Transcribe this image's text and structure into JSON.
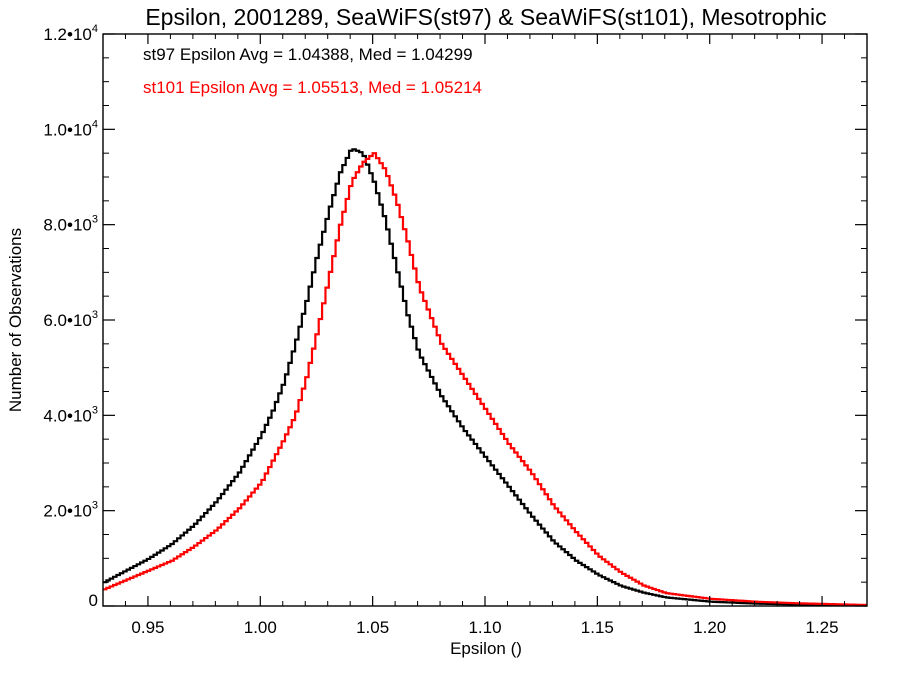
{
  "chart_data": {
    "type": "line",
    "style": "step-histogram",
    "title": "Epsilon, 2001289, SeaWiFS(st97) & SeaWiFS(st101), Mesotrophic",
    "xlabel": "Epsilon ()",
    "ylabel": "Number of Observations",
    "xlim": [
      0.93,
      1.27
    ],
    "ylim": [
      0,
      12000
    ],
    "x_ticks": [
      {
        "value": 0.95,
        "label": "0.95"
      },
      {
        "value": 1.0,
        "label": "1.00"
      },
      {
        "value": 1.05,
        "label": "1.05"
      },
      {
        "value": 1.1,
        "label": "1.10"
      },
      {
        "value": 1.15,
        "label": "1.15"
      },
      {
        "value": 1.2,
        "label": "1.20"
      },
      {
        "value": 1.25,
        "label": "1.25"
      }
    ],
    "y_ticks": [
      {
        "value": 0,
        "mant": "0",
        "exp": ""
      },
      {
        "value": 2000,
        "mant": "2.0•10",
        "exp": "3"
      },
      {
        "value": 4000,
        "mant": "4.0•10",
        "exp": "3"
      },
      {
        "value": 6000,
        "mant": "6.0•10",
        "exp": "3"
      },
      {
        "value": 8000,
        "mant": "8.0•10",
        "exp": "3"
      },
      {
        "value": 10000,
        "mant": "1.0•10",
        "exp": "4"
      },
      {
        "value": 12000,
        "mant": "1.2•10",
        "exp": "4"
      }
    ],
    "annotations": [
      {
        "text": "st97 Epsilon Avg = 1.04388, Med = 1.04299",
        "color": "#000000"
      },
      {
        "text": "st101 Epsilon Avg = 1.05513, Med = 1.05214",
        "color": "#ff0000"
      }
    ],
    "series": [
      {
        "color": "#000000",
        "x": [
          0.93,
          0.94,
          0.95,
          0.96,
          0.97,
          0.98,
          0.99,
          1.0,
          1.005,
          1.01,
          1.015,
          1.02,
          1.025,
          1.03,
          1.035,
          1.04,
          1.045,
          1.05,
          1.055,
          1.06,
          1.065,
          1.07,
          1.08,
          1.09,
          1.1,
          1.11,
          1.12,
          1.13,
          1.14,
          1.15,
          1.16,
          1.17,
          1.18,
          1.2,
          1.22,
          1.24,
          1.27
        ],
        "values": [
          500,
          750,
          1000,
          1300,
          1700,
          2200,
          2800,
          3600,
          4100,
          4700,
          5500,
          6400,
          7400,
          8300,
          9100,
          9600,
          9500,
          8900,
          8100,
          7100,
          6100,
          5300,
          4400,
          3700,
          3100,
          2500,
          1900,
          1350,
          950,
          650,
          420,
          280,
          180,
          90,
          50,
          30,
          10
        ]
      },
      {
        "color": "#ff0000",
        "x": [
          0.93,
          0.94,
          0.95,
          0.96,
          0.97,
          0.98,
          0.99,
          1.0,
          1.005,
          1.01,
          1.015,
          1.02,
          1.025,
          1.03,
          1.035,
          1.04,
          1.045,
          1.05,
          1.055,
          1.06,
          1.065,
          1.07,
          1.08,
          1.09,
          1.1,
          1.11,
          1.12,
          1.13,
          1.14,
          1.15,
          1.16,
          1.17,
          1.18,
          1.2,
          1.22,
          1.24,
          1.27
        ],
        "values": [
          350,
          550,
          750,
          950,
          1250,
          1600,
          2050,
          2600,
          3050,
          3500,
          4000,
          4800,
          5800,
          6900,
          8000,
          8900,
          9300,
          9500,
          9150,
          8500,
          7650,
          6700,
          5500,
          4800,
          4100,
          3400,
          2800,
          2100,
          1550,
          1050,
          700,
          430,
          270,
          150,
          90,
          55,
          20
        ]
      }
    ]
  }
}
